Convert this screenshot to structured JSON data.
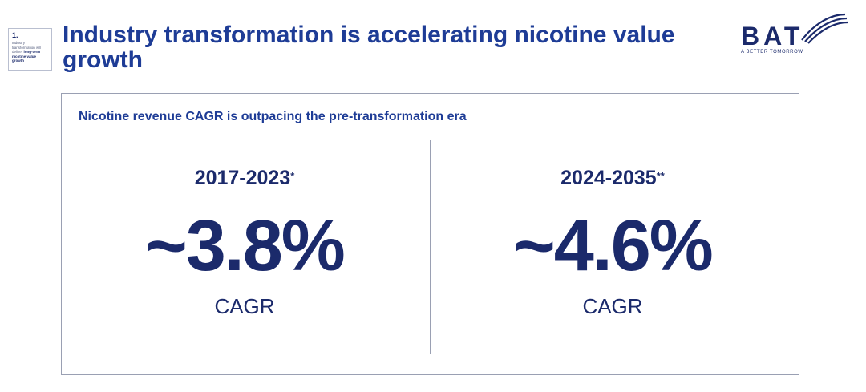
{
  "section_tag": {
    "number": "1.",
    "text_prefix": "Industry transformation will deliver",
    "text_strong": "long-term nicotine value growth"
  },
  "title": "Industry transformation is accelerating nicotine value growth",
  "logo": {
    "wordmark": "BAT",
    "tagline": "A BETTER TOMORROW"
  },
  "panel": {
    "heading": "Nicotine revenue CAGR is outpacing the pre-transformation era",
    "left": {
      "period": "2017-2023",
      "mark": "*",
      "value": "~3.8%",
      "metric": "CAGR"
    },
    "right": {
      "period": "2024-2035",
      "mark": "**",
      "value": "~4.6%",
      "metric": "CAGR"
    }
  },
  "colors": {
    "navy": "#1b2a6b",
    "title_blue": "#1e3c96",
    "border": "#9aa0b3"
  }
}
